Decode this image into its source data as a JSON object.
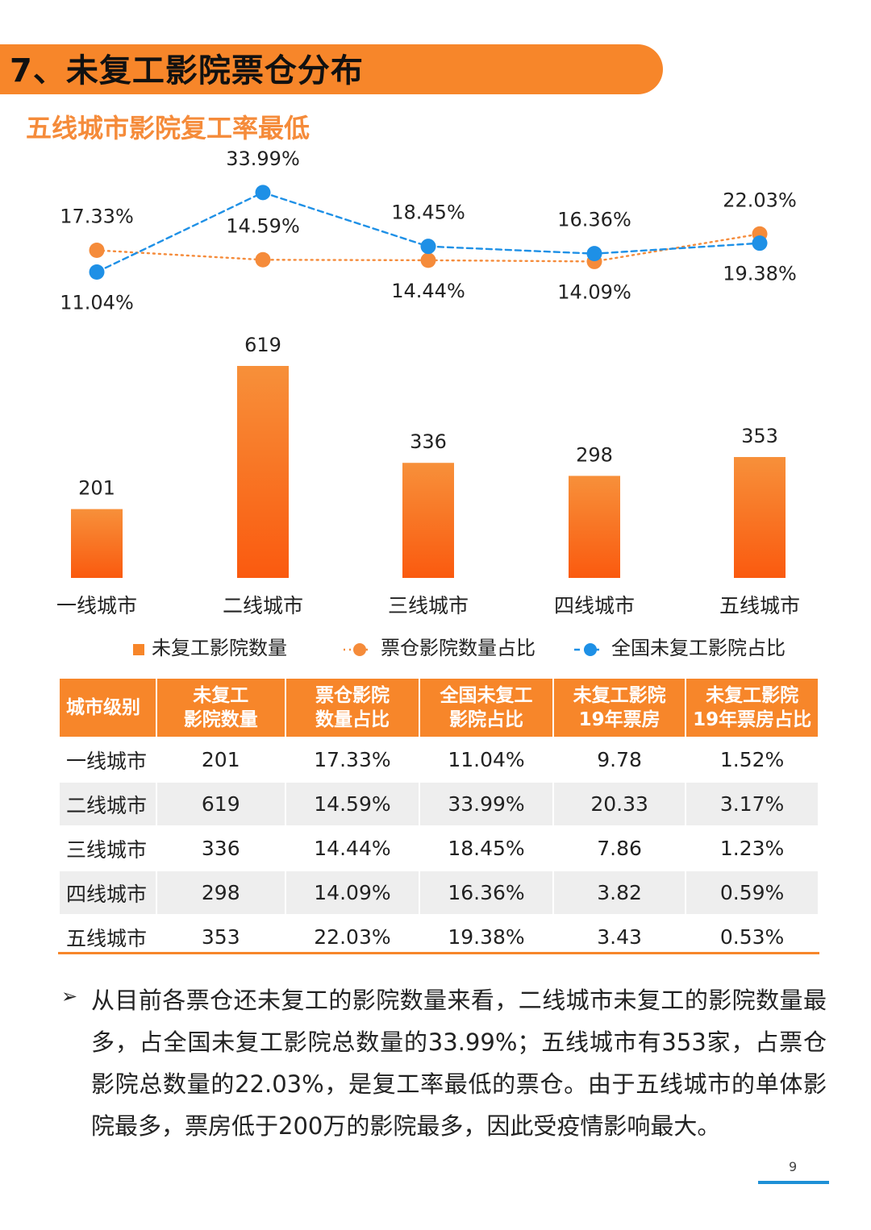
{
  "header": {
    "title": "7、未复工影院票仓分布",
    "subtitle": "五线城市影院复工率最低"
  },
  "colors": {
    "accent": "#f7862a",
    "bar_top": "#f7903a",
    "bar_bottom": "#fa5a0f",
    "line_orange": "#f58b3a",
    "line_blue": "#1e90e6"
  },
  "chart_data": {
    "type": "bar",
    "title": "",
    "categories": [
      "一线城市",
      "二线城市",
      "三线城市",
      "四线城市",
      "五线城市"
    ],
    "series": [
      {
        "name": "未复工影院数量",
        "kind": "bar",
        "values": [
          201,
          619,
          336,
          298,
          353
        ],
        "labels": [
          "201",
          "619",
          "336",
          "298",
          "353"
        ]
      },
      {
        "name": "票仓影院数量占比",
        "kind": "line",
        "style": "dotted",
        "values": [
          17.33,
          14.59,
          14.44,
          14.09,
          22.03
        ],
        "labels": [
          "17.33%",
          "14.59%",
          "14.44%",
          "14.09%",
          "22.03%"
        ]
      },
      {
        "name": "全国未复工影院占比",
        "kind": "line",
        "style": "dashed",
        "values": [
          11.04,
          33.99,
          18.45,
          16.36,
          19.38
        ],
        "labels": [
          "11.04%",
          "33.99%",
          "18.45%",
          "16.36%",
          "19.38%"
        ]
      }
    ],
    "legend": [
      "未复工影院数量",
      "票仓影院数量占比",
      "全国未复工影院占比"
    ],
    "legend_position": "bottom",
    "xlabel": "",
    "ylabel": "",
    "grid": false
  },
  "table": {
    "headers": [
      [
        "城市级别"
      ],
      [
        "未复工",
        "影院数量"
      ],
      [
        "票仓影院",
        "数量占比"
      ],
      [
        "全国未复工",
        "影院占比"
      ],
      [
        "未复工影院",
        "19年票房"
      ],
      [
        "未复工影院",
        "19年票房占比"
      ]
    ],
    "rows": [
      [
        "一线城市",
        "201",
        "17.33%",
        "11.04%",
        "9.78",
        "1.52%"
      ],
      [
        "二线城市",
        "619",
        "14.59%",
        "33.99%",
        "20.33",
        "3.17%"
      ],
      [
        "三线城市",
        "336",
        "14.44%",
        "18.45%",
        "7.86",
        "1.23%"
      ],
      [
        "四线城市",
        "298",
        "14.09%",
        "16.36%",
        "3.82",
        "0.59%"
      ],
      [
        "五线城市",
        "353",
        "22.03%",
        "19.38%",
        "3.43",
        "0.53%"
      ]
    ]
  },
  "note": {
    "bullet": "➢",
    "text": "从目前各票仓还未复工的影院数量来看，二线城市未复工的影院数量最多，占全国未复工影院总数量的33.99%；五线城市有353家，占票仓影院总数量的22.03%，是复工率最低的票仓。由于五线城市的单体影院最多，票房低于200万的影院最多，因此受疫情影响最大。"
  },
  "page_number": "9"
}
